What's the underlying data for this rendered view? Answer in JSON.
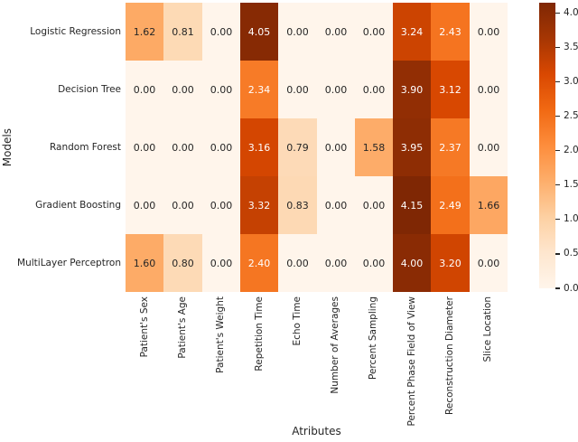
{
  "chart_data": {
    "type": "heatmap",
    "title": "",
    "xlabel": "Atributes",
    "ylabel": "Models",
    "rows": [
      "Logistic Regression",
      "Decision Tree",
      "Random Forest",
      "Gradient Boosting",
      "MultiLayer Perceptron"
    ],
    "columns": [
      "Patient's Sex",
      "Patient's Age",
      "Patient's Weight",
      "Repetition Time",
      "Echo Time",
      "Number of Averages",
      "Percent Sampling",
      "Percent Phase Field of View",
      "Reconstruction Diameter",
      "Slice Location"
    ],
    "values": [
      [
        1.62,
        0.81,
        0.0,
        4.05,
        0.0,
        0.0,
        0.0,
        3.24,
        2.43,
        0.0
      ],
      [
        0.0,
        0.0,
        0.0,
        2.34,
        0.0,
        0.0,
        0.0,
        3.9,
        3.12,
        0.0
      ],
      [
        0.0,
        0.0,
        0.0,
        3.16,
        0.79,
        0.0,
        1.58,
        3.95,
        2.37,
        0.0
      ],
      [
        0.0,
        0.0,
        0.0,
        3.32,
        0.83,
        0.0,
        0.0,
        4.15,
        2.49,
        1.66
      ],
      [
        1.6,
        0.8,
        0.0,
        2.4,
        0.0,
        0.0,
        0.0,
        4.0,
        3.2,
        0.0
      ]
    ],
    "value_format_decimals": 2,
    "vmin": 0,
    "vmax": 4.15,
    "colormap": {
      "name": "Oranges",
      "anchors": [
        {
          "t": 0.0,
          "hex": "#fff5eb"
        },
        {
          "t": 0.125,
          "hex": "#fee6ce"
        },
        {
          "t": 0.25,
          "hex": "#fdd0a2"
        },
        {
          "t": 0.375,
          "hex": "#fdae6b"
        },
        {
          "t": 0.5,
          "hex": "#fd8d3c"
        },
        {
          "t": 0.625,
          "hex": "#f16913"
        },
        {
          "t": 0.75,
          "hex": "#d94801"
        },
        {
          "t": 0.875,
          "hex": "#a63603"
        },
        {
          "t": 1.0,
          "hex": "#7f2704"
        }
      ]
    },
    "colorbar": {
      "position": "right",
      "ticks": [
        0.0,
        0.5,
        1.0,
        1.5,
        2.0,
        2.5,
        3.0,
        3.5,
        4.0
      ],
      "tick_format_decimals": 1
    },
    "annotation_colors": {
      "light_cell_text": "#262626",
      "dark_cell_text": "#ffffff"
    },
    "grid": false,
    "legend": false
  }
}
